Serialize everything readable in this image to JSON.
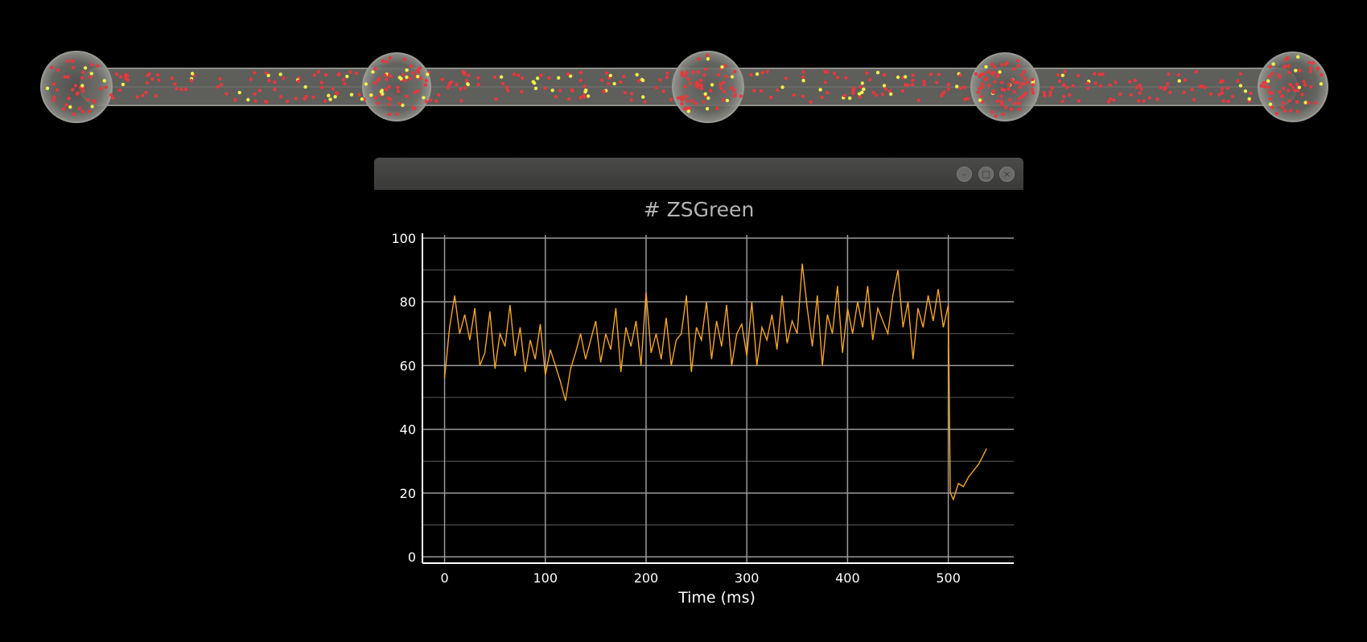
{
  "window": {
    "minimize_glyph": "–",
    "maximize_glyph": "□",
    "close_glyph": "×"
  },
  "chart_data": {
    "type": "line",
    "title": "# ZSGreen",
    "xlabel": "Time (ms)",
    "ylabel": "",
    "xlim": [
      -22,
      565
    ],
    "ylim": [
      -2,
      101
    ],
    "xticks": [
      0,
      100,
      200,
      300,
      400,
      500
    ],
    "yticks": [
      0,
      20,
      40,
      60,
      80,
      100
    ],
    "minor_yticks": [
      10,
      30,
      50,
      70,
      90
    ],
    "grid": true,
    "legend": "none",
    "line_color": "#f5a623",
    "series": [
      {
        "x": [
          0,
          5,
          10,
          15,
          20,
          25,
          30,
          35,
          40,
          45,
          50,
          55,
          60,
          65,
          70,
          75,
          80,
          85,
          90,
          95,
          100,
          105,
          110,
          115,
          120,
          125,
          130,
          135,
          140,
          145,
          150,
          155,
          160,
          165,
          170,
          175,
          180,
          185,
          190,
          195,
          200,
          205,
          210,
          215,
          220,
          225,
          230,
          235,
          240,
          245,
          250,
          255,
          260,
          265,
          270,
          275,
          280,
          285,
          290,
          295,
          300,
          305,
          310,
          315,
          320,
          325,
          330,
          335,
          340,
          345,
          350,
          355,
          360,
          365,
          370,
          375,
          380,
          385,
          390,
          395,
          400,
          405,
          410,
          415,
          420,
          425,
          430,
          435,
          440,
          445,
          450,
          455,
          460,
          465,
          470,
          475,
          480,
          485,
          490,
          495,
          500,
          502,
          505,
          510,
          515,
          520,
          525,
          530,
          535,
          538
        ],
        "y": [
          56,
          72,
          82,
          70,
          76,
          68,
          78,
          60,
          64,
          77,
          59,
          70,
          66,
          79,
          63,
          72,
          58,
          68,
          62,
          73,
          57,
          65,
          60,
          55,
          49,
          59,
          64,
          70,
          62,
          68,
          74,
          61,
          70,
          65,
          78,
          58,
          72,
          66,
          74,
          60,
          83,
          64,
          70,
          62,
          75,
          60,
          68,
          70,
          82,
          58,
          72,
          68,
          80,
          62,
          74,
          66,
          79,
          60,
          70,
          73,
          63,
          80,
          60,
          72,
          68,
          76,
          65,
          82,
          67,
          74,
          70,
          92,
          78,
          66,
          82,
          60,
          76,
          70,
          85,
          64,
          78,
          70,
          80,
          72,
          85,
          68,
          78,
          74,
          70,
          82,
          90,
          72,
          80,
          62,
          78,
          72,
          82,
          74,
          84,
          72,
          79,
          20,
          18,
          23,
          22,
          25,
          27,
          29,
          32,
          34
        ]
      }
    ]
  }
}
